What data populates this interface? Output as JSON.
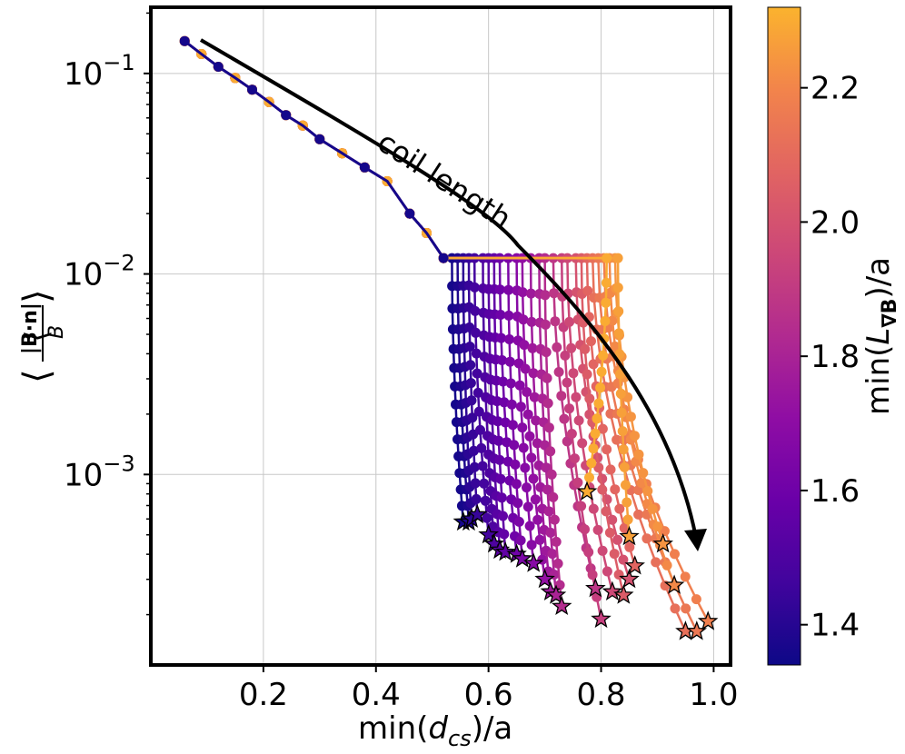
{
  "chart_data": {
    "type": "line",
    "xlabel": "min(d_cs)/a",
    "ylabel": "⟨|B·n|/B⟩",
    "xlim": [
      0.0,
      1.03
    ],
    "ylim_log10": [
      -3.95,
      -0.67
    ],
    "yscale": "log",
    "grid": true,
    "x_ticks": [
      0.2,
      0.4,
      0.6,
      0.8,
      1.0
    ],
    "x_tick_labels": [
      "0.2",
      "0.4",
      "0.6",
      "0.8",
      "1.0"
    ],
    "y_ticks_log10": [
      -1,
      -2,
      -3
    ],
    "y_tick_labels": [
      {
        "base": "10",
        "exp": "−1"
      },
      {
        "base": "10",
        "exp": "−2"
      },
      {
        "base": "10",
        "exp": "−3"
      }
    ],
    "annotation": "coil length",
    "colorbar": {
      "label": "min(L_∇B)/a",
      "colormap": "plasma",
      "range": [
        1.34,
        2.32
      ],
      "ticks": [
        1.4,
        1.6,
        1.8,
        2.0,
        2.2
      ],
      "tick_labels": [
        "1.4",
        "1.6",
        "1.8",
        "2.0",
        "2.2"
      ]
    },
    "marker_edge_color": "#000000",
    "trunk": {
      "description": "shared initial decrease common to all series",
      "x": [
        0.06,
        0.09,
        0.12,
        0.15,
        0.18,
        0.21,
        0.24,
        0.27,
        0.3,
        0.34,
        0.38,
        0.42,
        0.46,
        0.49,
        0.52
      ],
      "y": [
        0.145,
        0.125,
        0.108,
        0.095,
        0.083,
        0.072,
        0.062,
        0.055,
        0.047,
        0.04,
        0.034,
        0.029,
        0.02,
        0.016,
        0.012
      ]
    },
    "series": [
      {
        "L": 1.36,
        "x_start": 0.535,
        "x_end": 0.555,
        "y_end": 0.00058
      },
      {
        "L": 1.38,
        "x_start": 0.545,
        "x_end": 0.565,
        "y_end": 0.00058
      },
      {
        "L": 1.41,
        "x_start": 0.555,
        "x_end": 0.57,
        "y_end": 0.0006
      },
      {
        "L": 1.44,
        "x_start": 0.565,
        "x_end": 0.58,
        "y_end": 0.00063
      },
      {
        "L": 1.47,
        "x_start": 0.575,
        "x_end": 0.6,
        "y_end": 0.0005
      },
      {
        "L": 1.5,
        "x_start": 0.59,
        "x_end": 0.61,
        "y_end": 0.00045
      },
      {
        "L": 1.53,
        "x_start": 0.6,
        "x_end": 0.62,
        "y_end": 0.00042
      },
      {
        "L": 1.56,
        "x_start": 0.61,
        "x_end": 0.63,
        "y_end": 0.00041
      },
      {
        "L": 1.6,
        "x_start": 0.62,
        "x_end": 0.65,
        "y_end": 0.0004
      },
      {
        "L": 1.64,
        "x_start": 0.635,
        "x_end": 0.66,
        "y_end": 0.00038
      },
      {
        "L": 1.68,
        "x_start": 0.65,
        "x_end": 0.68,
        "y_end": 0.00036
      },
      {
        "L": 1.72,
        "x_start": 0.66,
        "x_end": 0.7,
        "y_end": 0.0003
      },
      {
        "L": 1.76,
        "x_start": 0.675,
        "x_end": 0.71,
        "y_end": 0.00026
      },
      {
        "L": 1.8,
        "x_start": 0.69,
        "x_end": 0.72,
        "y_end": 0.00025
      },
      {
        "L": 1.84,
        "x_start": 0.7,
        "x_end": 0.73,
        "y_end": 0.00022
      },
      {
        "L": 1.88,
        "x_start": 0.715,
        "x_end": 0.79,
        "y_end": 0.00027
      },
      {
        "L": 1.92,
        "x_start": 0.73,
        "x_end": 0.8,
        "y_end": 0.00019
      },
      {
        "L": 1.96,
        "x_start": 0.74,
        "x_end": 0.82,
        "y_end": 0.00026
      },
      {
        "L": 2.0,
        "x_start": 0.755,
        "x_end": 0.85,
        "y_end": 0.0003
      },
      {
        "L": 2.04,
        "x_start": 0.765,
        "x_end": 0.84,
        "y_end": 0.00025
      },
      {
        "L": 2.08,
        "x_start": 0.775,
        "x_end": 0.86,
        "y_end": 0.00035
      },
      {
        "L": 2.12,
        "x_start": 0.785,
        "x_end": 0.95,
        "y_end": 0.000165
      },
      {
        "L": 2.15,
        "x_start": 0.795,
        "x_end": 0.97,
        "y_end": 0.000165
      },
      {
        "L": 2.18,
        "x_start": 0.805,
        "x_end": 0.99,
        "y_end": 0.000185
      },
      {
        "L": 2.21,
        "x_start": 0.815,
        "x_end": 0.93,
        "y_end": 0.00028
      },
      {
        "L": 2.24,
        "x_start": 0.825,
        "x_end": 0.91,
        "y_end": 0.00045
      },
      {
        "L": 2.27,
        "x_start": 0.83,
        "x_end": 0.85,
        "y_end": 0.00049
      },
      {
        "L": 2.3,
        "x_start": 0.81,
        "x_end": 0.775,
        "y_end": 0.00082
      }
    ]
  }
}
